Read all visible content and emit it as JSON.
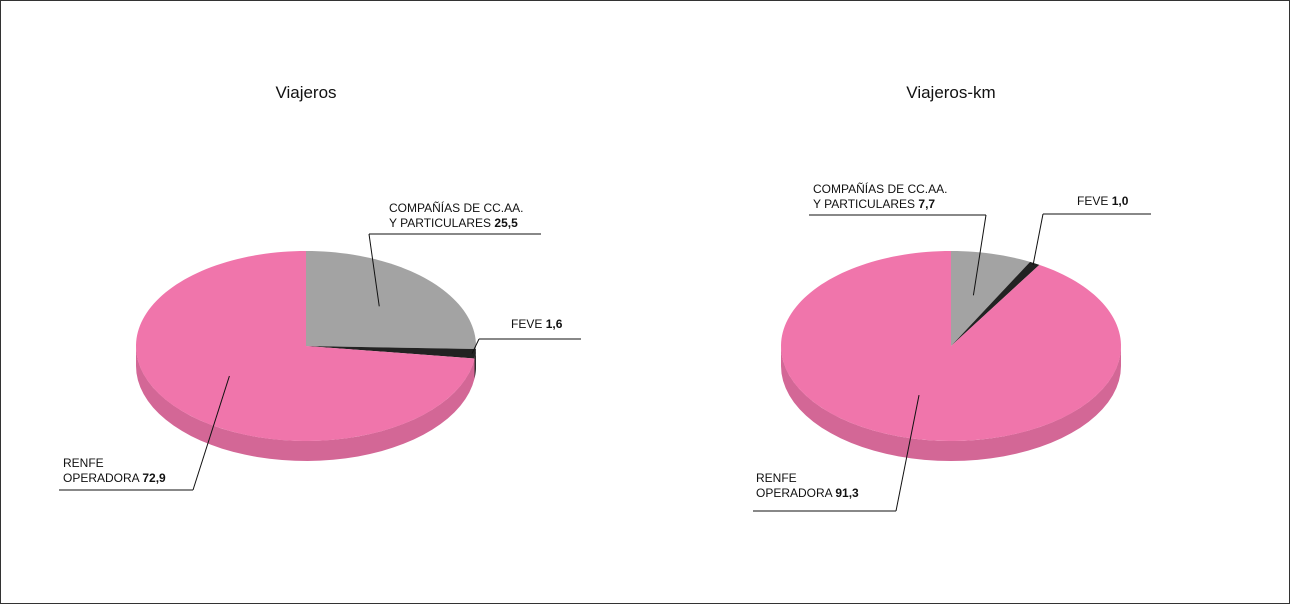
{
  "chart_data": [
    {
      "type": "pie",
      "title": "Viajeros",
      "categories": [
        "COMPAÑÍAS DE CC.AA.\nY PARTICULARES",
        "FEVE",
        "RENFE\nOPERADORA"
      ],
      "values": [
        25.5,
        1.6,
        72.9
      ],
      "value_labels": [
        "25,5",
        "1,6",
        "72,9"
      ],
      "colors": [
        "#a3a3a3",
        "#222222",
        "#f075ab"
      ]
    },
    {
      "type": "pie",
      "title": "Viajeros-km",
      "categories": [
        "COMPAÑÍAS DE CC.AA.\nY PARTICULARES",
        "FEVE",
        "RENFE\nOPERADORA"
      ],
      "values": [
        7.7,
        1.0,
        91.3
      ],
      "value_labels": [
        "7,7",
        "1,0",
        "91,3"
      ],
      "colors": [
        "#a3a3a3",
        "#222222",
        "#f075ab"
      ]
    }
  ]
}
